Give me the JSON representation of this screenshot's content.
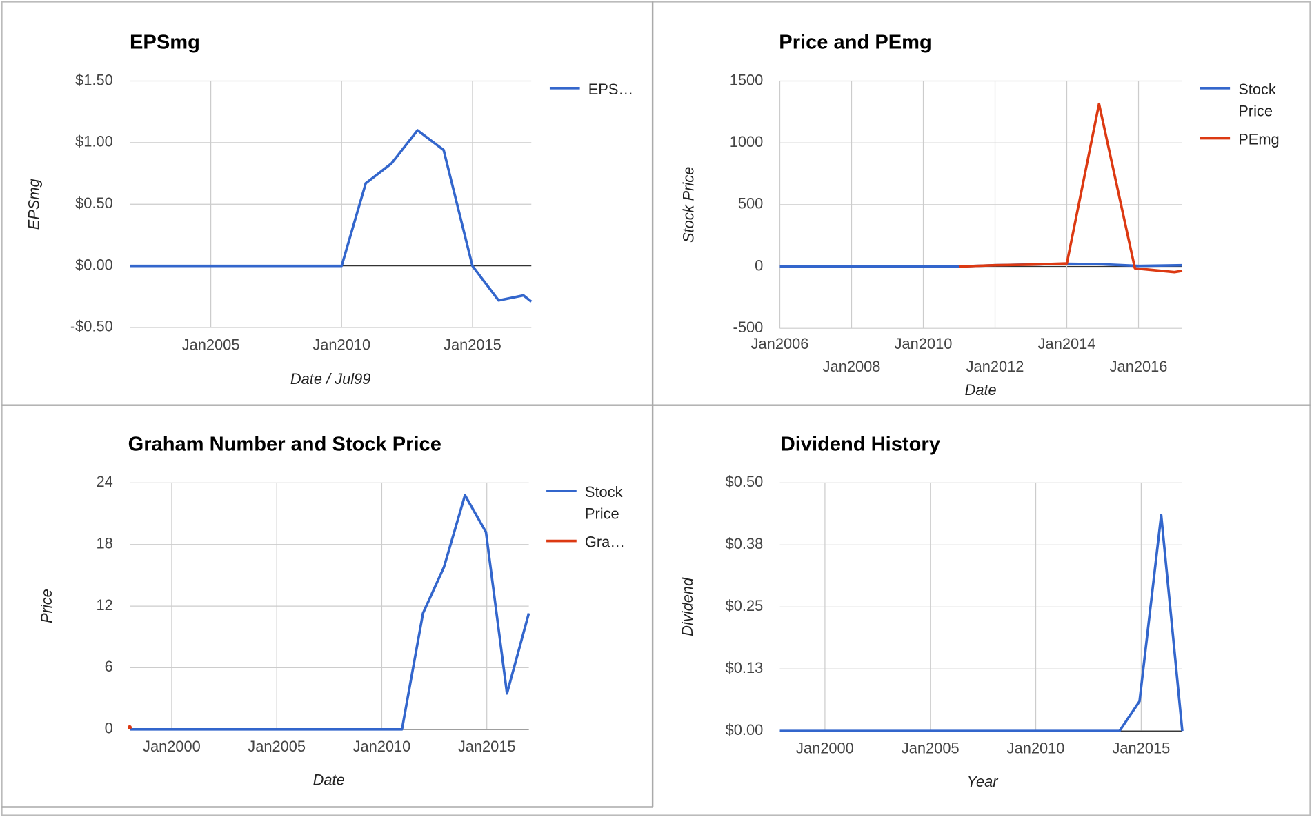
{
  "chart_data": [
    {
      "type": "line",
      "title": "EPSmg",
      "x_label": "Date / Jul99",
      "y_label": "EPSmg",
      "xlim": [
        2001.9,
        2017.25
      ],
      "xticks": [
        {
          "value": 2005,
          "label": "Jan2005"
        },
        {
          "value": 2010,
          "label": "Jan2010"
        },
        {
          "value": 2015,
          "label": "Jan2015"
        }
      ],
      "ylim": [
        -0.5,
        1.5
      ],
      "yticks": [
        {
          "value": -0.5,
          "label": "-$0.50"
        },
        {
          "value": 0,
          "label": "$0.00"
        },
        {
          "value": 0.5,
          "label": "$0.50"
        },
        {
          "value": 1,
          "label": "$1.00"
        },
        {
          "value": 1.5,
          "label": "$1.50"
        }
      ],
      "grid": true,
      "series": [
        {
          "name": "EPS…",
          "color": "#3366cc",
          "x": [
            2001.9,
            2010,
            2010.92,
            2011.9,
            2012.9,
            2013.9,
            2015,
            2016,
            2016.95,
            2017.25
          ],
          "values": [
            0,
            0,
            0.67,
            0.83,
            1.1,
            0.94,
            0,
            -0.28,
            -0.24,
            -0.29
          ]
        }
      ]
    },
    {
      "type": "line",
      "title": "Price and PEmg",
      "x_label": "Date",
      "y_label": "Stock Price",
      "xlim": [
        2006,
        2017.22
      ],
      "xticks": [
        {
          "value": 2006,
          "label": "Jan2006"
        },
        {
          "value": 2008,
          "label": "Jan2008"
        },
        {
          "value": 2010,
          "label": "Jan2010"
        },
        {
          "value": 2012,
          "label": "Jan2012"
        },
        {
          "value": 2014,
          "label": "Jan2014"
        },
        {
          "value": 2016,
          "label": "Jan2016"
        }
      ],
      "ylim": [
        -500,
        1500
      ],
      "yticks": [
        -500,
        0,
        500,
        1000,
        1500
      ],
      "grid": true,
      "series": [
        {
          "name": "Stock Price",
          "color": "#3366cc",
          "x": [
            2006,
            2010.99,
            2012,
            2014,
            2015,
            2016,
            2017.22
          ],
          "values": [
            0,
            0,
            10,
            22,
            18,
            5,
            10
          ]
        },
        {
          "name": "PEmg",
          "color": "#dc3912",
          "x": [
            2010.99,
            2012,
            2013,
            2014,
            2014.9,
            2015.9,
            2017,
            2017.22
          ],
          "values": [
            0,
            10,
            15,
            25,
            1315,
            -15,
            -45,
            -35
          ]
        }
      ]
    },
    {
      "type": "line",
      "title": "Graham Number and Stock Price",
      "x_label": "Date",
      "y_label": "Price",
      "xlim": [
        1998,
        2017
      ],
      "xticks": [
        {
          "value": 2000,
          "label": "Jan2000"
        },
        {
          "value": 2005,
          "label": "Jan2005"
        },
        {
          "value": 2010,
          "label": "Jan2010"
        },
        {
          "value": 2015,
          "label": "Jan2015"
        }
      ],
      "ylim": [
        0,
        24
      ],
      "yticks": [
        0,
        6,
        12,
        18,
        24
      ],
      "grid": true,
      "series": [
        {
          "name": "Stock Price",
          "color": "#3366cc",
          "x": [
            1998,
            2010.96,
            2011.96,
            2012.96,
            2013.96,
            2014.96,
            2015.96,
            2017
          ],
          "values": [
            0,
            0,
            11.3,
            15.8,
            22.8,
            19.2,
            3.5,
            11.3
          ]
        },
        {
          "name": "Gra…",
          "color": "#dc3912",
          "x": [
            1998
          ],
          "values": [
            0.2
          ]
        }
      ]
    },
    {
      "type": "line",
      "title": "Dividend History",
      "x_label": "Year",
      "y_label": "Dividend",
      "xlim": [
        1997.86,
        2016.95
      ],
      "xticks": [
        {
          "value": 2000,
          "label": "Jan2000"
        },
        {
          "value": 2005,
          "label": "Jan2005"
        },
        {
          "value": 2010,
          "label": "Jan2010"
        },
        {
          "value": 2015,
          "label": "Jan2015"
        }
      ],
      "ylim": [
        0,
        0.5
      ],
      "yticks": [
        {
          "value": 0,
          "label": "$0.00"
        },
        {
          "value": 0.125,
          "label": "$0.13"
        },
        {
          "value": 0.25,
          "label": "$0.25"
        },
        {
          "value": 0.375,
          "label": "$0.38"
        },
        {
          "value": 0.5,
          "label": "$0.50"
        }
      ],
      "grid": true,
      "series": [
        {
          "color": "#3366cc",
          "x": [
            1997.86,
            2013.97,
            2014.92,
            2015.95,
            2016.95
          ],
          "values": [
            0,
            0,
            0.06,
            0.435,
            0
          ]
        }
      ]
    }
  ]
}
